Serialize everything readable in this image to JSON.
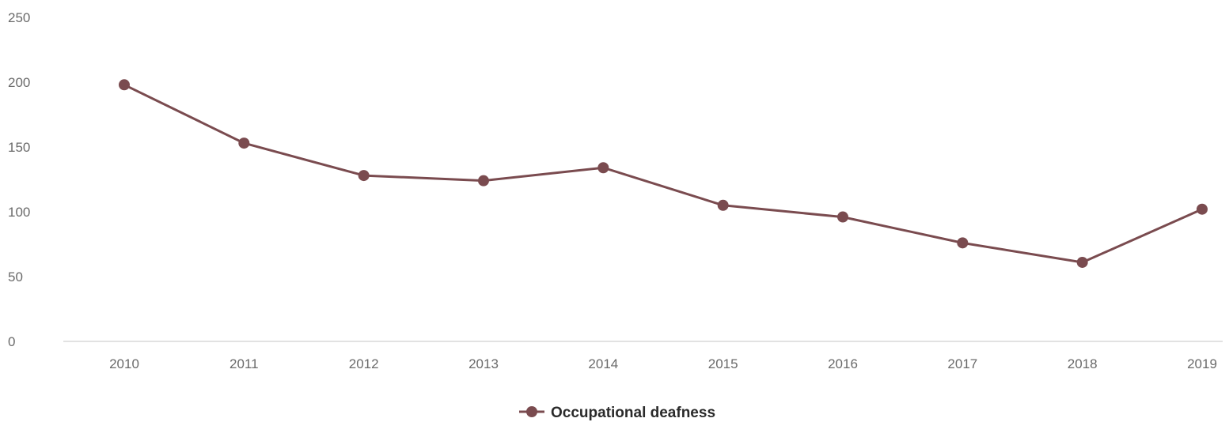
{
  "chart_data": {
    "type": "line",
    "title": "",
    "xlabel": "",
    "ylabel": "",
    "categories": [
      "2010",
      "2011",
      "2012",
      "2013",
      "2014",
      "2015",
      "2016",
      "2017",
      "2018",
      "2019"
    ],
    "series": [
      {
        "name": "Occupational deafness",
        "values": [
          198,
          153,
          128,
          124,
          134,
          105,
          96,
          76,
          61,
          102
        ],
        "color": "#7a4b4f"
      }
    ],
    "ylim": [
      0,
      250
    ],
    "yticks": [
      "0",
      "50",
      "100",
      "150",
      "200",
      "250"
    ],
    "grid": false,
    "legend_position": "bottom-center",
    "axis_color": "#e2e2e2"
  }
}
